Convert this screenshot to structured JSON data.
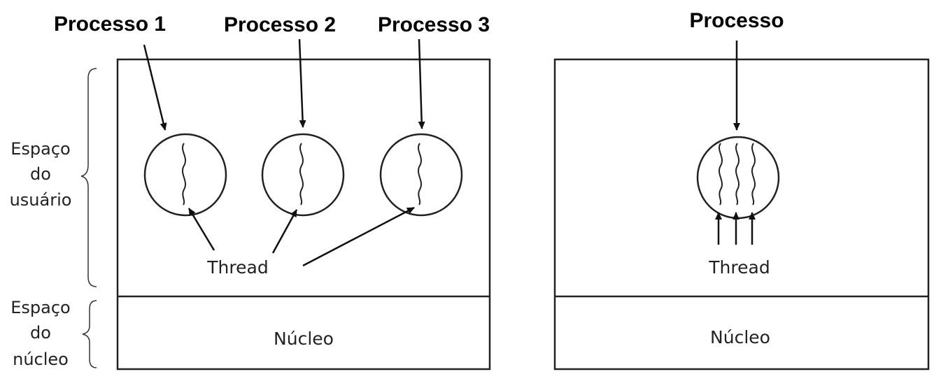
{
  "left_diagram": {
    "process_labels": [
      "Processo 1",
      "Processo 2",
      "Processo 3"
    ],
    "thread_label": "Thread",
    "kernel_label": "Núcleo"
  },
  "right_diagram": {
    "process_label": "Processo",
    "thread_label": "Thread",
    "kernel_label": "Núcleo"
  },
  "side_labels": {
    "user_space": [
      "Espaço",
      "do",
      "usuário"
    ],
    "kernel_space": [
      "Espaço",
      "do",
      "núcleo"
    ]
  }
}
